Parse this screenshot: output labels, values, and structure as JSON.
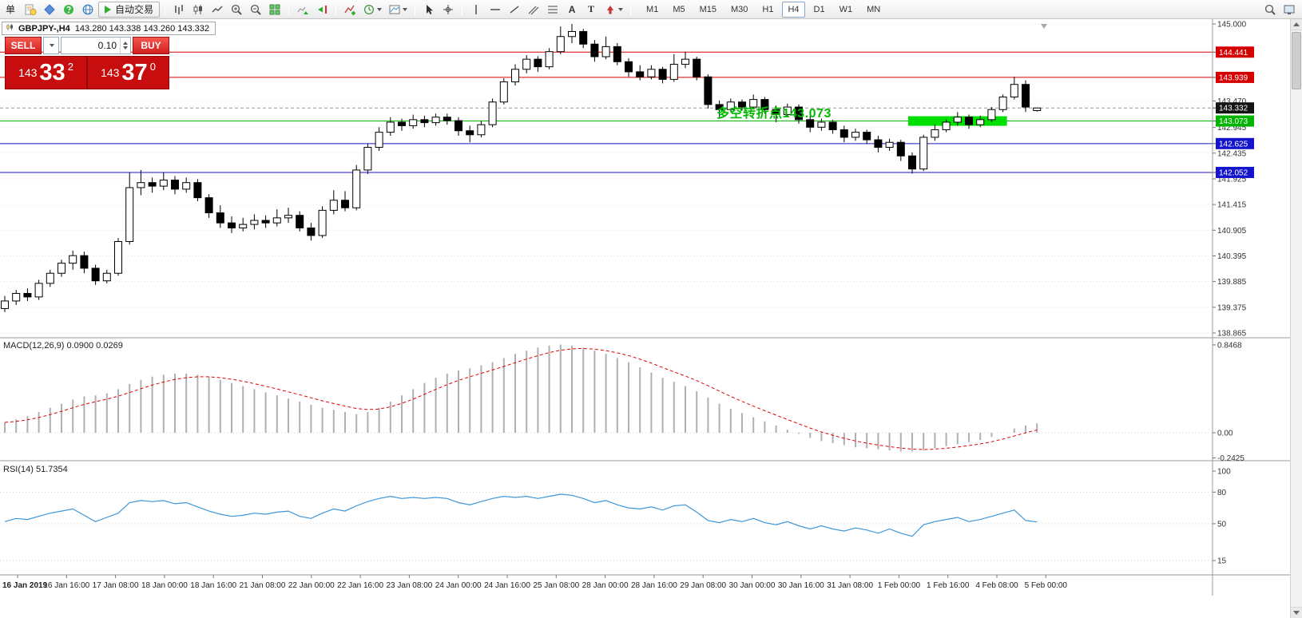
{
  "toolbar": {
    "menu_label": "单",
    "autotrade_label": "自动交易",
    "text_tool_label": "A",
    "label_tool_label": "T",
    "timeframes": [
      "M1",
      "M5",
      "M15",
      "M30",
      "H1",
      "H4",
      "D1",
      "W1",
      "MN"
    ],
    "active_timeframe": "H4"
  },
  "chart_header": {
    "symbol": "GBPJPY-,H4",
    "ohlc": "143.280 143.338 143.260 143.332"
  },
  "trade_panel": {
    "sell_label": "SELL",
    "buy_label": "BUY",
    "lot_value": "0.10",
    "sell_price_main": "143",
    "sell_price_pips": "33",
    "sell_price_sup": "2",
    "buy_price_main": "143",
    "buy_price_pips": "37",
    "buy_price_sup": "0"
  },
  "annotation": {
    "text": "多空转折点143.073",
    "color": "#00bb00"
  },
  "macd_panel": {
    "label": "MACD(12,26,9) 0.0900 0.0269"
  },
  "rsi_panel": {
    "label": "RSI(14) 51.7354"
  },
  "chart_data": [
    {
      "type": "candlestick",
      "symbol": "GBPJPY-",
      "timeframe": "H4",
      "title": "GBPJPY-,H4",
      "price_axis": {
        "min": 138.865,
        "max": 145.0,
        "tick_labels": [
          "145.000",
          "143.470",
          "142.945",
          "142.435",
          "141.925",
          "141.415",
          "140.905",
          "140.395",
          "139.885",
          "139.375",
          "138.865"
        ],
        "tick_values": [
          145.0,
          143.47,
          142.945,
          142.435,
          141.925,
          141.415,
          140.905,
          140.395,
          139.885,
          139.375,
          138.865
        ]
      },
      "gridline_values": [
        145.0,
        144.49,
        143.98,
        143.47,
        142.945,
        142.435,
        141.925,
        141.415,
        140.905,
        140.395,
        139.885,
        139.375,
        138.865
      ],
      "levels": [
        {
          "price": 144.441,
          "label": "144.441",
          "color": "#d40000",
          "style": "solid"
        },
        {
          "price": 143.939,
          "label": "143.939",
          "color": "#d40000",
          "style": "solid"
        },
        {
          "price": 143.332,
          "label": "143.332",
          "color": "#999999",
          "style": "dash",
          "badge": "#141414"
        },
        {
          "price": 143.073,
          "label": "143.073",
          "color": "#00b400",
          "style": "solid"
        },
        {
          "price": 142.625,
          "label": "142.625",
          "color": "#1414cc",
          "style": "solid"
        },
        {
          "price": 142.052,
          "label": "142.052",
          "color": "#1414cc",
          "style": "solid"
        }
      ],
      "highlight_rect": {
        "from": 80,
        "to": 88,
        "price": 143.073,
        "half_height": 6,
        "color": "#00e000"
      },
      "colors": {
        "bull_fill": "#ffffff",
        "bear_fill": "#000000",
        "outline": "#000000"
      },
      "candles": [
        [
          139.35,
          139.6,
          139.28,
          139.5
        ],
        [
          139.5,
          139.72,
          139.42,
          139.65
        ],
        [
          139.65,
          139.75,
          139.5,
          139.58
        ],
        [
          139.58,
          139.92,
          139.52,
          139.85
        ],
        [
          139.85,
          140.12,
          139.78,
          140.05
        ],
        [
          140.05,
          140.32,
          139.98,
          140.25
        ],
        [
          140.25,
          140.5,
          140.12,
          140.4
        ],
        [
          140.4,
          140.48,
          140.05,
          140.15
        ],
        [
          140.15,
          140.22,
          139.82,
          139.9
        ],
        [
          139.9,
          140.12,
          139.85,
          140.05
        ],
        [
          140.05,
          140.75,
          140.0,
          140.68
        ],
        [
          140.68,
          142.05,
          140.62,
          141.75
        ],
        [
          141.75,
          142.1,
          141.6,
          141.85
        ],
        [
          141.85,
          141.95,
          141.65,
          141.78
        ],
        [
          141.78,
          142.05,
          141.7,
          141.9
        ],
        [
          141.9,
          141.98,
          141.62,
          141.72
        ],
        [
          141.72,
          141.95,
          141.65,
          141.85
        ],
        [
          141.85,
          141.92,
          141.48,
          141.55
        ],
        [
          141.55,
          141.62,
          141.15,
          141.25
        ],
        [
          141.25,
          141.4,
          140.95,
          141.05
        ],
        [
          141.05,
          141.18,
          140.85,
          140.95
        ],
        [
          140.95,
          141.15,
          140.88,
          141.02
        ],
        [
          141.02,
          141.22,
          140.92,
          141.1
        ],
        [
          141.1,
          141.2,
          140.95,
          141.05
        ],
        [
          141.05,
          141.32,
          140.98,
          141.15
        ],
        [
          141.15,
          141.35,
          141.05,
          141.2
        ],
        [
          141.2,
          141.28,
          140.88,
          140.95
        ],
        [
          140.95,
          141.05,
          140.7,
          140.8
        ],
        [
          140.8,
          141.38,
          140.75,
          141.3
        ],
        [
          141.3,
          141.7,
          141.22,
          141.5
        ],
        [
          141.5,
          141.68,
          141.28,
          141.35
        ],
        [
          141.35,
          142.2,
          141.3,
          142.1
        ],
        [
          142.1,
          142.62,
          142.02,
          142.55
        ],
        [
          142.55,
          142.95,
          142.48,
          142.85
        ],
        [
          142.85,
          143.15,
          142.78,
          143.05
        ],
        [
          143.05,
          143.12,
          142.88,
          142.98
        ],
        [
          142.98,
          143.2,
          142.92,
          143.1
        ],
        [
          143.1,
          143.18,
          142.95,
          143.04
        ],
        [
          143.04,
          143.22,
          142.98,
          143.15
        ],
        [
          143.15,
          143.22,
          143.0,
          143.08
        ],
        [
          143.08,
          143.15,
          142.78,
          142.88
        ],
        [
          142.88,
          142.98,
          142.65,
          142.8
        ],
        [
          142.8,
          143.08,
          142.75,
          143.0
        ],
        [
          143.0,
          143.52,
          142.95,
          143.45
        ],
        [
          143.45,
          143.92,
          143.4,
          143.85
        ],
        [
          143.85,
          144.2,
          143.78,
          144.1
        ],
        [
          144.1,
          144.38,
          144.02,
          144.3
        ],
        [
          144.3,
          144.36,
          144.05,
          144.15
        ],
        [
          144.15,
          144.52,
          144.1,
          144.45
        ],
        [
          144.45,
          144.95,
          144.4,
          144.75
        ],
        [
          144.75,
          145.0,
          144.62,
          144.85
        ],
        [
          144.85,
          144.9,
          144.52,
          144.6
        ],
        [
          144.6,
          144.68,
          144.25,
          144.35
        ],
        [
          144.35,
          144.75,
          144.3,
          144.55
        ],
        [
          144.55,
          144.62,
          144.18,
          144.25
        ],
        [
          144.25,
          144.32,
          143.95,
          144.05
        ],
        [
          144.05,
          144.18,
          143.88,
          143.95
        ],
        [
          143.95,
          144.18,
          143.9,
          144.1
        ],
        [
          144.1,
          144.15,
          143.82,
          143.9
        ],
        [
          143.9,
          144.4,
          143.85,
          144.2
        ],
        [
          144.2,
          144.45,
          144.12,
          144.3
        ],
        [
          144.3,
          144.35,
          143.88,
          143.95
        ],
        [
          143.95,
          144.0,
          143.32,
          143.4
        ],
        [
          143.4,
          143.48,
          143.15,
          143.3
        ],
        [
          143.3,
          143.52,
          143.25,
          143.45
        ],
        [
          143.45,
          143.5,
          143.28,
          143.35
        ],
        [
          143.35,
          143.6,
          143.3,
          143.5
        ],
        [
          143.5,
          143.55,
          143.22,
          143.3
        ],
        [
          143.3,
          143.38,
          143.05,
          143.2
        ],
        [
          143.2,
          143.42,
          143.15,
          143.35
        ],
        [
          143.35,
          143.4,
          143.02,
          143.1
        ],
        [
          143.1,
          143.18,
          142.85,
          142.95
        ],
        [
          142.95,
          143.12,
          142.88,
          143.05
        ],
        [
          143.05,
          143.1,
          142.82,
          142.9
        ],
        [
          142.9,
          142.98,
          142.65,
          142.75
        ],
        [
          142.75,
          142.92,
          142.68,
          142.85
        ],
        [
          142.85,
          142.9,
          142.62,
          142.7
        ],
        [
          142.7,
          142.78,
          142.45,
          142.55
        ],
        [
          142.55,
          142.72,
          142.48,
          142.65
        ],
        [
          142.65,
          142.7,
          142.28,
          142.38
        ],
        [
          142.38,
          142.45,
          142.03,
          142.12
        ],
        [
          142.12,
          142.8,
          142.08,
          142.75
        ],
        [
          142.75,
          143.0,
          142.68,
          142.9
        ],
        [
          142.9,
          143.1,
          142.85,
          143.05
        ],
        [
          143.05,
          143.25,
          142.98,
          143.15
        ],
        [
          143.15,
          143.2,
          142.92,
          143.0
        ],
        [
          143.0,
          143.18,
          142.95,
          143.1
        ],
        [
          143.1,
          143.35,
          143.05,
          143.3
        ],
        [
          143.3,
          143.6,
          143.25,
          143.55
        ],
        [
          143.55,
          143.95,
          143.5,
          143.8
        ],
        [
          143.8,
          143.88,
          143.25,
          143.35
        ],
        [
          143.28,
          143.338,
          143.26,
          143.332
        ]
      ],
      "time_labels": [
        "16 Jan 2019",
        "16 Jan 16:00",
        "17 Jan 08:00",
        "18 Jan 00:00",
        "18 Jan 16:00",
        "21 Jan 08:00",
        "22 Jan 00:00",
        "22 Jan 16:00",
        "23 Jan 08:00",
        "24 Jan 00:00",
        "24 Jan 16:00",
        "25 Jan 08:00",
        "28 Jan 00:00",
        "28 Jan 16:00",
        "29 Jan 08:00",
        "30 Jan 00:00",
        "30 Jan 16:00",
        "31 Jan 08:00",
        "1 Feb 00:00",
        "1 Feb 16:00",
        "4 Feb 08:00",
        "5 Feb 00:00"
      ]
    },
    {
      "type": "bar",
      "name": "MACD(12,26,9)",
      "values_text": "0.0900 0.0269",
      "axis_labels": [
        "0.8468",
        "0.00",
        "-0.2425"
      ],
      "axis_values": [
        0.8468,
        0,
        -0.2425
      ],
      "histogram_color": "#b0b0b0",
      "signal_color": "#e00000",
      "histogram": [
        0.1,
        0.13,
        0.16,
        0.2,
        0.24,
        0.28,
        0.32,
        0.35,
        0.36,
        0.38,
        0.42,
        0.47,
        0.51,
        0.54,
        0.56,
        0.57,
        0.57,
        0.56,
        0.54,
        0.51,
        0.48,
        0.45,
        0.42,
        0.39,
        0.36,
        0.33,
        0.3,
        0.27,
        0.24,
        0.22,
        0.2,
        0.18,
        0.2,
        0.24,
        0.3,
        0.36,
        0.42,
        0.48,
        0.53,
        0.57,
        0.6,
        0.62,
        0.65,
        0.68,
        0.72,
        0.76,
        0.79,
        0.82,
        0.84,
        0.85,
        0.84,
        0.82,
        0.79,
        0.76,
        0.72,
        0.68,
        0.63,
        0.58,
        0.53,
        0.49,
        0.45,
        0.4,
        0.34,
        0.28,
        0.23,
        0.19,
        0.15,
        0.11,
        0.07,
        0.03,
        -0.01,
        -0.05,
        -0.08,
        -0.1,
        -0.12,
        -0.14,
        -0.15,
        -0.16,
        -0.17,
        -0.18,
        -0.18,
        -0.17,
        -0.15,
        -0.13,
        -0.11,
        -0.09,
        -0.07,
        -0.04,
        0.0,
        0.04,
        0.07,
        0.09
      ]
    },
    {
      "type": "line",
      "name": "RSI(14)",
      "value_text": "51.7354",
      "axis_labels": [
        "100",
        "80",
        "50",
        "15"
      ],
      "axis_values": [
        100,
        80,
        50,
        15
      ],
      "levels": [
        80,
        50,
        15
      ],
      "line_color": "#3f96d8",
      "values": [
        52,
        55,
        54,
        57,
        60,
        62,
        64,
        58,
        52,
        56,
        60,
        70,
        72,
        71,
        72,
        69,
        70,
        66,
        62,
        59,
        57,
        58,
        60,
        59,
        61,
        62,
        57,
        55,
        60,
        64,
        62,
        67,
        71,
        74,
        76,
        74,
        75,
        74,
        75,
        74,
        70,
        68,
        71,
        74,
        76,
        75,
        76,
        74,
        76,
        78,
        77,
        74,
        70,
        72,
        68,
        65,
        64,
        66,
        63,
        67,
        68,
        61,
        53,
        51,
        54,
        52,
        55,
        51,
        49,
        52,
        48,
        45,
        48,
        45,
        43,
        46,
        44,
        41,
        45,
        41,
        38,
        49,
        52,
        54,
        56,
        52,
        54,
        57,
        60,
        63,
        53,
        51.7
      ]
    }
  ]
}
